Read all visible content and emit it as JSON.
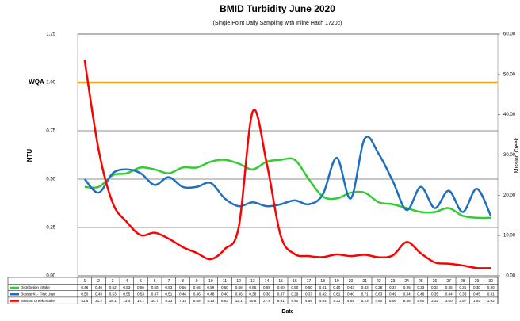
{
  "chart_data": {
    "type": "line",
    "title": "BMID Turbidity June 2020",
    "subtitle": "(Single Point Daily Sampling with Inline Hach 1720c)",
    "ylabel": "NTU",
    "y2label": "Mission Creek",
    "xlabel": "Date",
    "annotation": {
      "label": "WQA",
      "value": 1,
      "color": "#f5a31a"
    },
    "categories": [
      "1",
      "2",
      "3",
      "4",
      "5",
      "6",
      "7",
      "8",
      "9",
      "10",
      "11",
      "12",
      "13",
      "14",
      "15",
      "16",
      "17",
      "18",
      "19",
      "20",
      "21",
      "22",
      "23",
      "24",
      "25",
      "26",
      "27",
      "28",
      "29",
      "30"
    ],
    "ylim": [
      0,
      1.25
    ],
    "yticks": [
      {
        "value": 0,
        "label": "0.00"
      },
      0.25,
      {
        "value": 0.5,
        "label": "0.50"
      },
      0.75,
      {
        "value": 1,
        "label": "1.00"
      },
      1.25
    ],
    "y2lim": [
      0,
      60
    ],
    "y2ticks": [
      {
        "value": 0,
        "label": "0.00"
      },
      {
        "value": 10,
        "label": "10.00"
      },
      {
        "value": 20,
        "label": "20.00"
      },
      {
        "value": 30,
        "label": "30.00"
      },
      {
        "value": 40,
        "label": "40.00"
      },
      {
        "value": 50,
        "label": "50.00"
      },
      {
        "value": 60,
        "label": "60.00"
      }
    ],
    "grid": true,
    "series": [
      {
        "name": "Distribution Intake",
        "color": "#33cc33",
        "values": [
          0.46,
          0.46,
          0.52,
          0.53,
          0.56,
          0.55,
          0.53,
          0.56,
          0.56,
          0.59,
          0.6,
          0.58,
          0.55,
          0.59,
          0.6,
          0.6,
          0.5,
          0.41,
          0.4,
          0.43,
          0.43,
          0.38,
          0.37,
          0.35,
          0.33,
          0.33,
          0.35,
          0.31,
          0.3,
          0.3
        ],
        "value_labels": [
          "0.46",
          "0.46",
          "0.52",
          "0.53",
          "0.56",
          "0.55",
          "0.53",
          "0.56",
          "0.56",
          "0.59",
          "0.60",
          "0.58",
          "0.55",
          "0.59",
          "0.60",
          "0.60",
          "0.50",
          "0.41",
          "0.40",
          "0.43",
          "0.43",
          "0.38",
          "0.37",
          "0.35",
          "0.33",
          "0.33",
          "0.35",
          "0.31",
          "0.30",
          "0.30"
        ]
      },
      {
        "name": "Booster#1- First User",
        "color": "#1f6fbf",
        "values": [
          0.5,
          0.43,
          0.53,
          0.55,
          0.53,
          0.47,
          0.51,
          0.46,
          0.46,
          0.48,
          0.4,
          0.36,
          0.38,
          0.36,
          0.37,
          0.39,
          0.37,
          0.42,
          0.61,
          0.4,
          0.71,
          0.63,
          0.49,
          0.34,
          0.46,
          0.35,
          0.44,
          0.33,
          0.45,
          0.31
        ],
        "value_labels": [
          "0.50",
          "0.43",
          "0.53",
          "0.55",
          "0.53",
          "0.47",
          "0.51",
          "0.46",
          "0.46",
          "0.48",
          "0.40",
          "0.36",
          "0.38",
          "0.36",
          "0.37",
          "0.39",
          "0.37",
          "0.42",
          "0.61",
          "0.40",
          "0.71",
          "0.63",
          "0.49",
          "0.34",
          "0.46",
          "0.35",
          "0.44",
          "0.33",
          "0.45",
          "0.31"
        ]
      },
      {
        "name": "Mission Creek Intake",
        "color": "#ff0000",
        "axis": "y2",
        "values": [
          53.5,
          31.2,
          18.1,
          13.4,
          10.1,
          10.7,
          9.23,
          7.14,
          5.68,
          4.13,
          6.63,
          12.1,
          40.8,
          27.9,
          9.91,
          5.4,
          4.89,
          4.64,
          5.31,
          4.89,
          5.23,
          4.6,
          5.06,
          8.38,
          5.6,
          3.32,
          3,
          2.57,
          1.93,
          1.92
        ],
        "value_labels": [
          "53.5",
          "31.2",
          "18.1",
          "13.4",
          "10.1",
          "10.7",
          "9.23",
          "7.14",
          "5.68",
          "4.13",
          "6.63",
          "12.1",
          "40.8",
          "27.9",
          "9.91",
          "5.40",
          "4.89",
          "4.64",
          "5.31",
          "4.89",
          "5.23",
          "4.60",
          "5.06",
          "8.38",
          "5.60",
          "3.32",
          "3.00",
          "2.57",
          "1.93",
          "1.92"
        ]
      }
    ]
  }
}
